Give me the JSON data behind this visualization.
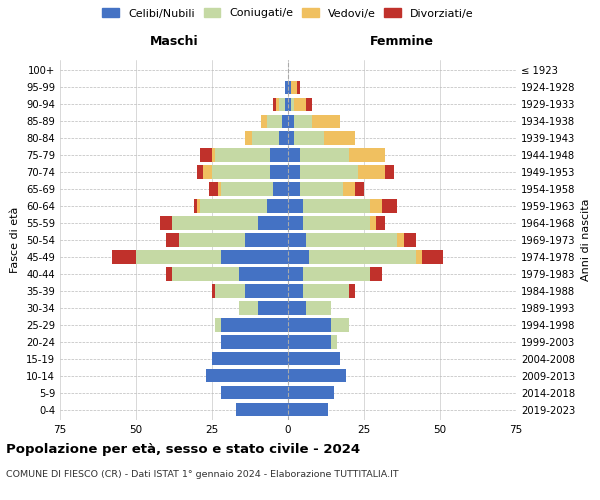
{
  "age_groups": [
    "0-4",
    "5-9",
    "10-14",
    "15-19",
    "20-24",
    "25-29",
    "30-34",
    "35-39",
    "40-44",
    "45-49",
    "50-54",
    "55-59",
    "60-64",
    "65-69",
    "70-74",
    "75-79",
    "80-84",
    "85-89",
    "90-94",
    "95-99",
    "100+"
  ],
  "birth_years": [
    "2019-2023",
    "2014-2018",
    "2009-2013",
    "2004-2008",
    "1999-2003",
    "1994-1998",
    "1989-1993",
    "1984-1988",
    "1979-1983",
    "1974-1978",
    "1969-1973",
    "1964-1968",
    "1959-1963",
    "1954-1958",
    "1949-1953",
    "1944-1948",
    "1939-1943",
    "1934-1938",
    "1929-1933",
    "1924-1928",
    "≤ 1923"
  ],
  "male": {
    "celibi": [
      17,
      22,
      27,
      25,
      22,
      22,
      10,
      14,
      16,
      22,
      14,
      10,
      7,
      5,
      6,
      6,
      3,
      2,
      1,
      1,
      0
    ],
    "coniugati": [
      0,
      0,
      0,
      0,
      0,
      2,
      6,
      10,
      22,
      28,
      22,
      28,
      22,
      17,
      19,
      18,
      9,
      5,
      2,
      0,
      0
    ],
    "vedovi": [
      0,
      0,
      0,
      0,
      0,
      0,
      0,
      0,
      0,
      0,
      0,
      0,
      1,
      1,
      3,
      1,
      2,
      2,
      1,
      0,
      0
    ],
    "divorziati": [
      0,
      0,
      0,
      0,
      0,
      0,
      0,
      1,
      2,
      8,
      4,
      4,
      1,
      3,
      2,
      4,
      0,
      0,
      1,
      0,
      0
    ]
  },
  "female": {
    "nubili": [
      13,
      15,
      19,
      17,
      14,
      14,
      6,
      5,
      5,
      7,
      6,
      5,
      5,
      4,
      4,
      4,
      2,
      2,
      1,
      1,
      0
    ],
    "coniugate": [
      0,
      0,
      0,
      0,
      2,
      6,
      8,
      15,
      22,
      35,
      30,
      22,
      22,
      14,
      19,
      16,
      10,
      6,
      1,
      0,
      0
    ],
    "vedove": [
      0,
      0,
      0,
      0,
      0,
      0,
      0,
      0,
      0,
      2,
      2,
      2,
      4,
      4,
      9,
      12,
      10,
      9,
      4,
      2,
      0
    ],
    "divorziate": [
      0,
      0,
      0,
      0,
      0,
      0,
      0,
      2,
      4,
      7,
      4,
      3,
      5,
      3,
      3,
      0,
      0,
      0,
      2,
      1,
      0
    ]
  },
  "colors": {
    "celibi": "#4472c4",
    "coniugati": "#c5d9a4",
    "vedovi": "#f0c060",
    "divorziati": "#c0312b"
  },
  "xlim": 75,
  "title": "Popolazione per età, sesso e stato civile - 2024",
  "subtitle": "COMUNE DI FIESCO (CR) - Dati ISTAT 1° gennaio 2024 - Elaborazione TUTTITALIA.IT",
  "xlabel_left": "Maschi",
  "xlabel_right": "Femmine",
  "ylabel_left": "Fasce di età",
  "ylabel_right": "Anni di nascita",
  "bg_color": "#ffffff",
  "grid_color": "#bbbbbb"
}
